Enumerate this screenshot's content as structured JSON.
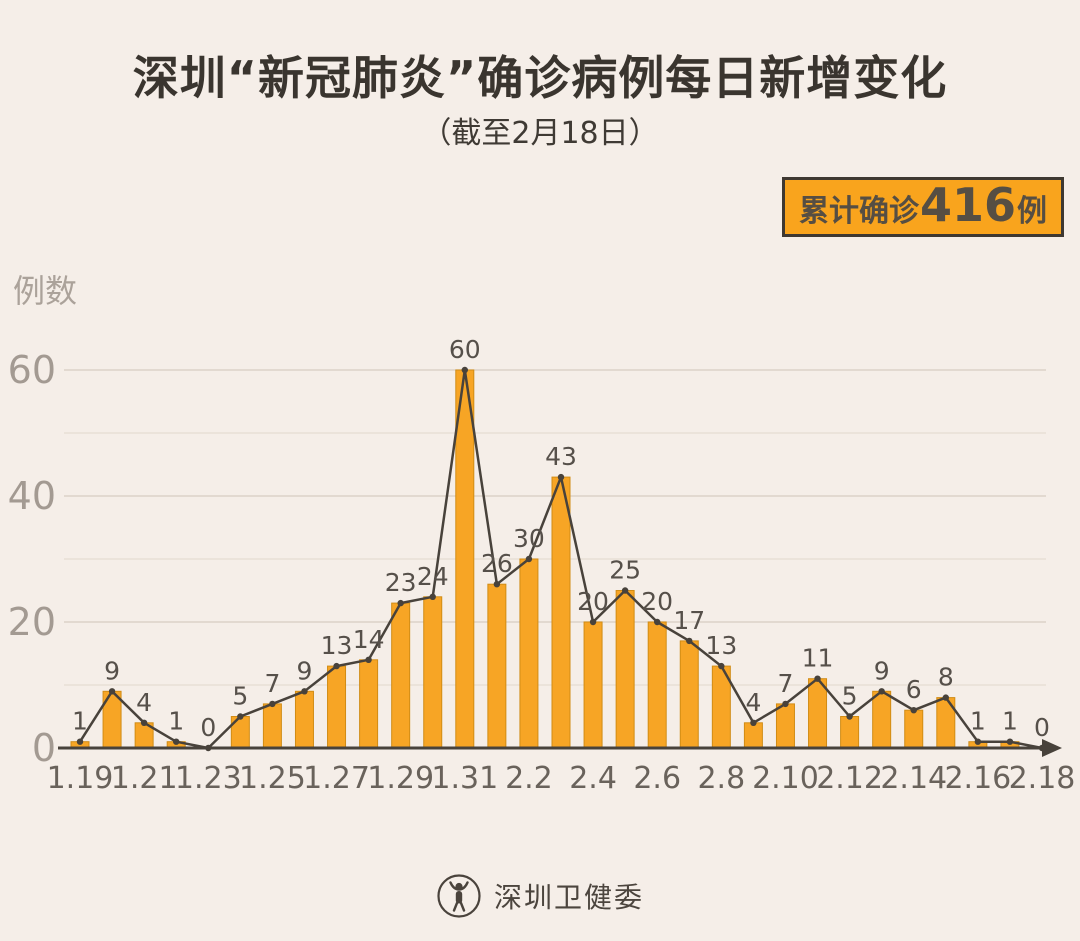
{
  "header": {
    "title": "深圳“新冠肺炎”确诊病例每日新增变化",
    "subtitle": "（截至2月18日）"
  },
  "badge": {
    "prefix": "累计确诊",
    "value": "416",
    "suffix": "例"
  },
  "footer": {
    "source_name": "深圳卫健委",
    "logo": "shenzhen-health-commission-emblem"
  },
  "colors": {
    "background": "#f5eee8",
    "bar_fill": "#f7a525",
    "bar_stroke": "#d18c15",
    "line": "#48423b",
    "badge_bg": "#f9a41d",
    "badge_border": "#3e3831",
    "title_text": "#3a352f",
    "axis_text": "#69625b",
    "ytick_text": "#a39a92",
    "value_label_text": "#56504a",
    "grid_major": "#dcd2c8",
    "grid_minor": "#e8dfd6"
  },
  "chart_data": {
    "type": "bar",
    "overlay": "line",
    "title": "深圳“新冠肺炎”确诊病例每日新增变化",
    "subtitle": "（截至2月18日）",
    "xlabel": "",
    "ylabel": "例数",
    "categories": [
      "1.19",
      "1.20",
      "1.21",
      "1.22",
      "1.23",
      "1.24",
      "1.25",
      "1.26",
      "1.27",
      "1.28",
      "1.29",
      "1.30",
      "1.31",
      "2.1",
      "2.2",
      "2.3",
      "2.4",
      "2.5",
      "2.6",
      "2.7",
      "2.8",
      "2.9",
      "2.10",
      "2.11",
      "2.12",
      "2.13",
      "2.14",
      "2.15",
      "2.16",
      "2.17",
      "2.18"
    ],
    "values": [
      1,
      9,
      4,
      1,
      0,
      5,
      7,
      9,
      13,
      14,
      23,
      24,
      60,
      26,
      30,
      43,
      20,
      25,
      20,
      17,
      13,
      4,
      7,
      11,
      5,
      9,
      6,
      8,
      1,
      1,
      0
    ],
    "visible_x_ticks": [
      "1.19",
      "1.21",
      "1.23",
      "1.25",
      "1.27",
      "1.29",
      "1.31",
      "2.2",
      "2.4",
      "2.6",
      "2.8",
      "2.10",
      "2.12",
      "2.14",
      "2.16",
      "2.18"
    ],
    "x_tick_every": 2,
    "yticks": [
      0,
      20,
      40,
      60
    ],
    "ylim": [
      0,
      60
    ],
    "grid": true,
    "grid_step": 10,
    "legend": null,
    "cumulative_total": 416
  }
}
